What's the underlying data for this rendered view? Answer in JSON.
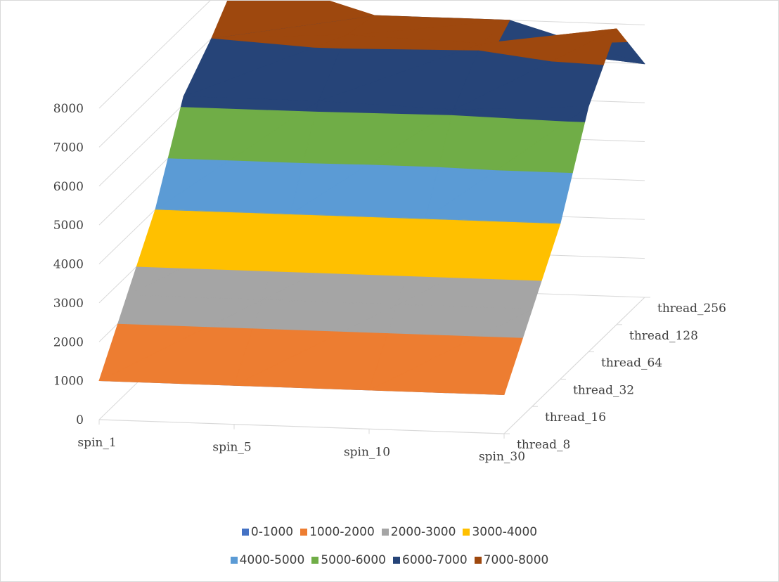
{
  "chart_data": {
    "type": "surface",
    "title": "",
    "z_axis": {
      "range": [
        0,
        8000
      ],
      "ticks": [
        "0",
        "1000",
        "2000",
        "3000",
        "4000",
        "5000",
        "6000",
        "7000",
        "8000"
      ]
    },
    "categories": [
      "spin_1",
      "spin_5",
      "spin_10",
      "spin_30"
    ],
    "series": [
      {
        "name": "thread_8",
        "values": [
          1000,
          1000,
          1000,
          1000
        ]
      },
      {
        "name": "thread_16",
        "values": [
          2500,
          2500,
          2500,
          2500
        ]
      },
      {
        "name": "thread_32",
        "values": [
          4000,
          4000,
          4000,
          4000
        ]
      },
      {
        "name": "thread_64",
        "values": [
          6200,
          6200,
          6100,
          6300
        ]
      },
      {
        "name": "thread_128",
        "values": [
          7000,
          7200,
          7100,
          7600
        ]
      },
      {
        "name": "thread_256",
        "values": [
          8000,
          7000,
          7000,
          6000
        ]
      }
    ],
    "legend": {
      "position": "bottom",
      "items": [
        {
          "label": "0-1000",
          "color": "#4472C4"
        },
        {
          "label": "1000-2000",
          "color": "#ED7D31"
        },
        {
          "label": "2000-3000",
          "color": "#A5A5A5"
        },
        {
          "label": "3000-4000",
          "color": "#FFC000"
        },
        {
          "label": "4000-5000",
          "color": "#5B9BD5"
        },
        {
          "label": "5000-6000",
          "color": "#70AD47"
        },
        {
          "label": "6000-7000",
          "color": "#264478"
        },
        {
          "label": "7000-8000",
          "color": "#9E480E"
        }
      ]
    },
    "grid": true
  }
}
